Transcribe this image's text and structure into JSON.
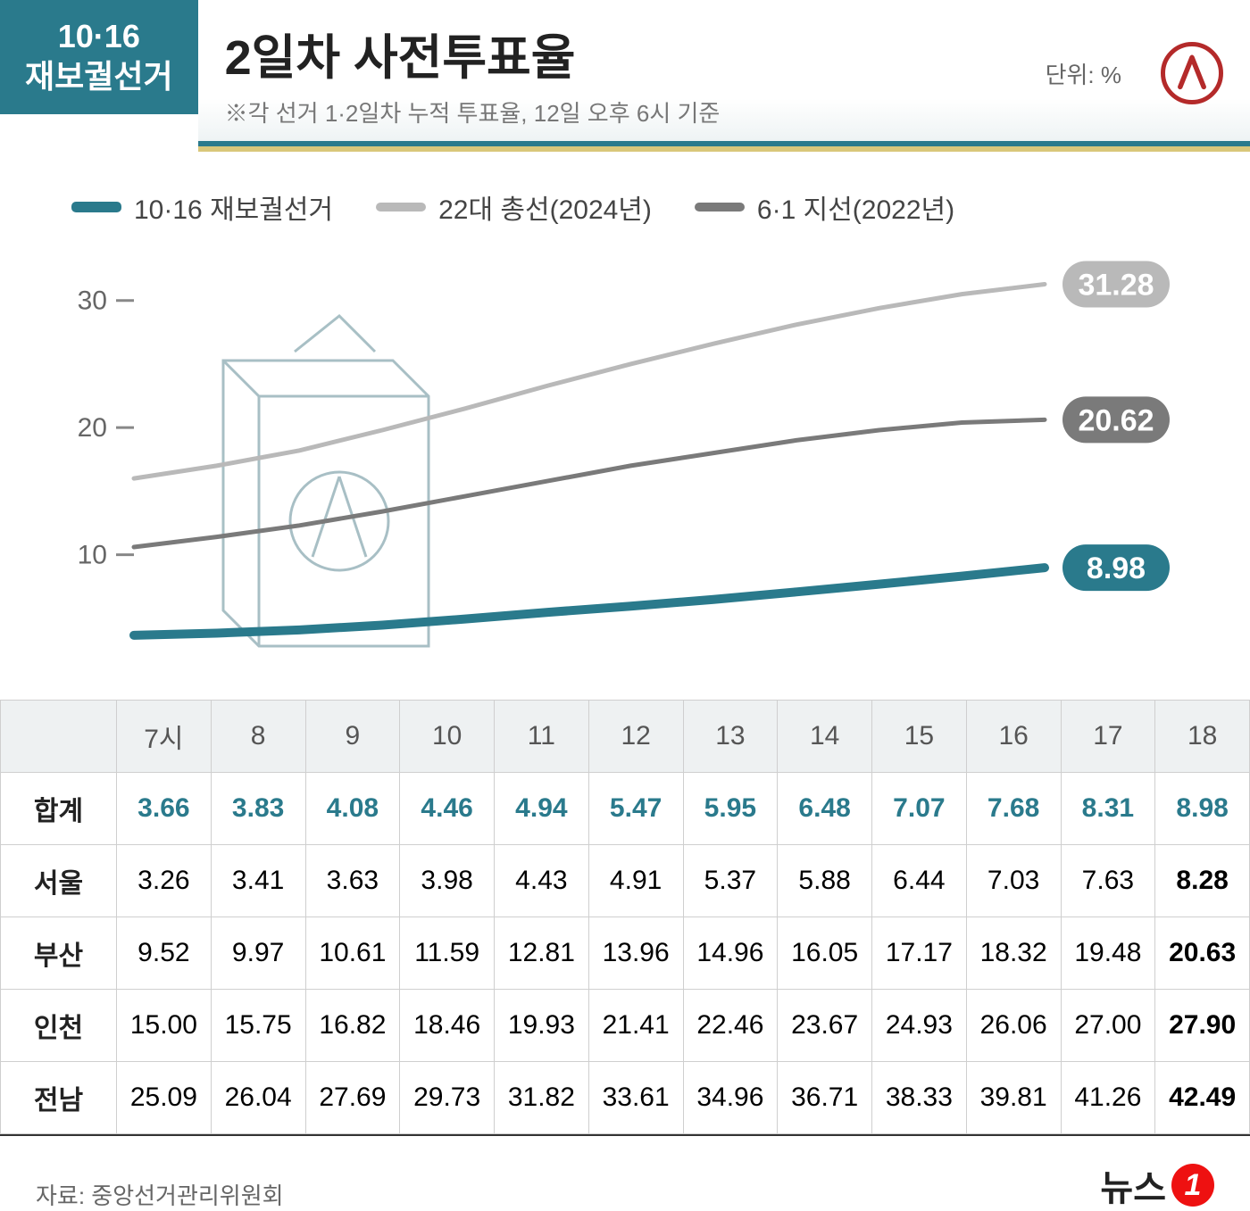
{
  "badge_line1": "10·16",
  "badge_line2": "재보궐선거",
  "title": "2일차 사전투표율",
  "subtitle": "※각 선거 1·2일차 누적 투표율, 12일 오후 6시 기준",
  "unit": "단위: %",
  "legend": {
    "s1": {
      "label": "10·16 재보궐선거",
      "color": "#2a7a8c"
    },
    "s2": {
      "label": "22대 총선(2024년)",
      "color": "#b9b9b9"
    },
    "s3": {
      "label": "6·1 지선(2022년)",
      "color": "#7a7a7a"
    }
  },
  "chart": {
    "hours": [
      "7시",
      "8",
      "9",
      "10",
      "11",
      "12",
      "13",
      "14",
      "15",
      "16",
      "17",
      "18"
    ],
    "yticks": [
      10,
      20,
      30
    ],
    "ymin": 0,
    "ymax": 33,
    "series": {
      "s2": {
        "values": [
          16.0,
          17.0,
          18.2,
          19.8,
          21.5,
          23.3,
          25.0,
          26.6,
          28.1,
          29.4,
          30.5,
          31.28
        ],
        "end": "31.28",
        "color": "#b9b9b9",
        "weight": 5
      },
      "s3": {
        "values": [
          10.6,
          11.4,
          12.3,
          13.4,
          14.6,
          15.8,
          17.0,
          18.0,
          19.0,
          19.8,
          20.4,
          20.62
        ],
        "end": "20.62",
        "color": "#7a7a7a",
        "weight": 5
      },
      "s1": {
        "values": [
          3.66,
          3.83,
          4.08,
          4.46,
          4.94,
          5.47,
          5.95,
          6.48,
          7.07,
          7.68,
          8.31,
          8.98
        ],
        "end": "8.98",
        "color": "#2a7a8c",
        "weight": 10
      }
    },
    "ballot_box_stroke": "#9fb9bf"
  },
  "table": {
    "cols": [
      "7시",
      "8",
      "9",
      "10",
      "11",
      "12",
      "13",
      "14",
      "15",
      "16",
      "17",
      "18"
    ],
    "rows": [
      {
        "name": "합계",
        "cls": "total",
        "cells": [
          "3.66",
          "3.83",
          "4.08",
          "4.46",
          "4.94",
          "5.47",
          "5.95",
          "6.48",
          "7.07",
          "7.68",
          "8.31",
          "8.98"
        ]
      },
      {
        "name": "서울",
        "cells": [
          "3.26",
          "3.41",
          "3.63",
          "3.98",
          "4.43",
          "4.91",
          "5.37",
          "5.88",
          "6.44",
          "7.03",
          "7.63",
          "8.28"
        ]
      },
      {
        "name": "부산",
        "cells": [
          "9.52",
          "9.97",
          "10.61",
          "11.59",
          "12.81",
          "13.96",
          "14.96",
          "16.05",
          "17.17",
          "18.32",
          "19.48",
          "20.63"
        ]
      },
      {
        "name": "인천",
        "cells": [
          "15.00",
          "15.75",
          "16.82",
          "18.46",
          "19.93",
          "21.41",
          "22.46",
          "23.67",
          "24.93",
          "26.06",
          "27.00",
          "27.90"
        ]
      },
      {
        "name": "전남",
        "cells": [
          "25.09",
          "26.04",
          "27.69",
          "29.73",
          "31.82",
          "33.61",
          "34.96",
          "36.71",
          "38.33",
          "39.81",
          "41.26",
          "42.49"
        ]
      }
    ]
  },
  "source": "자료: 중앙선거관리위원회",
  "brand": "뉴스"
}
